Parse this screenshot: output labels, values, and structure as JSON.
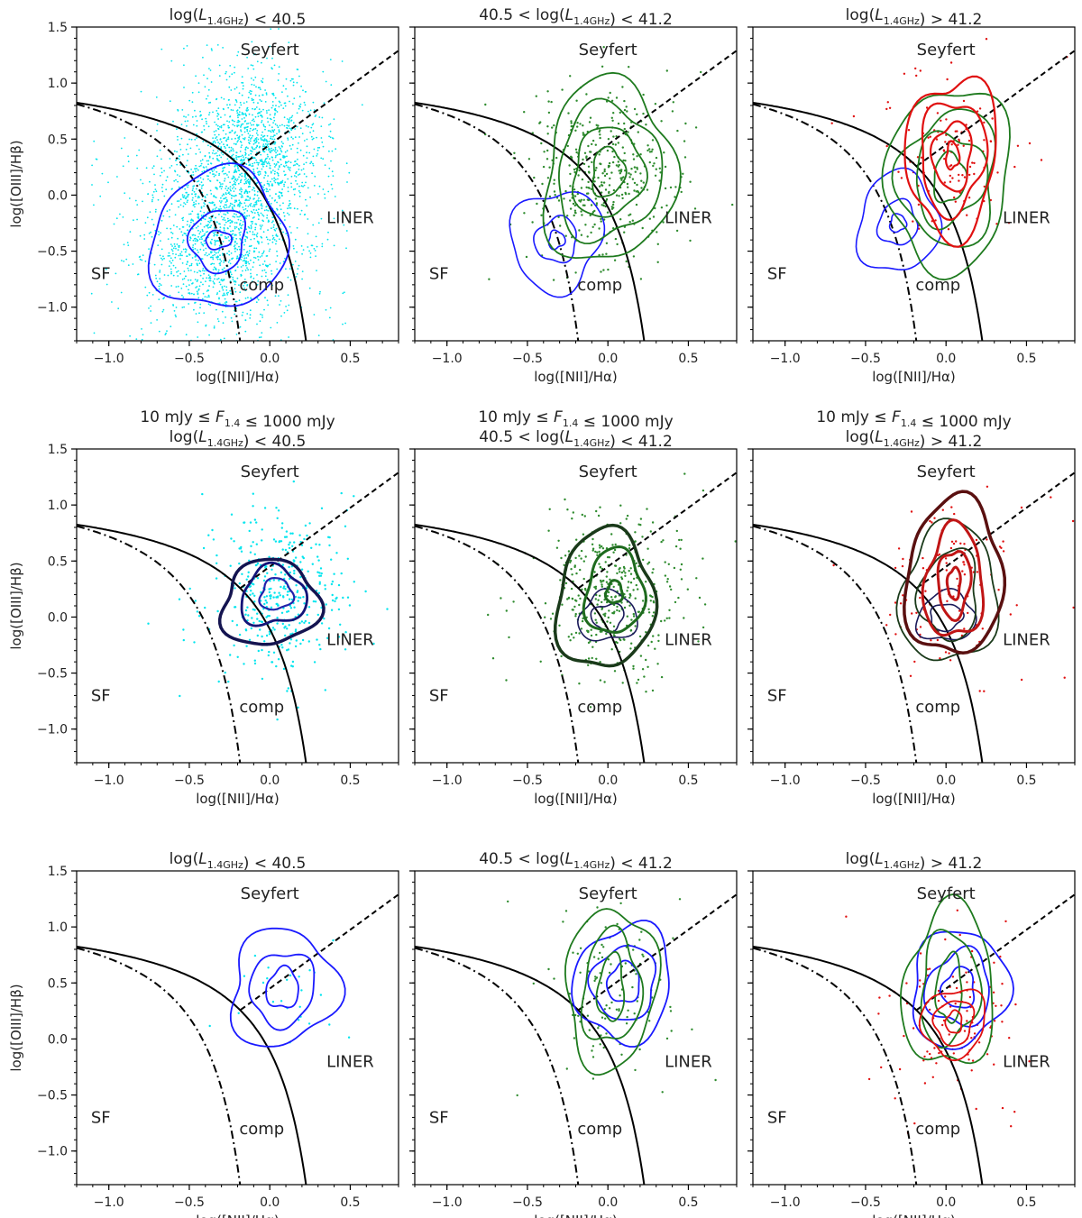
{
  "figure": {
    "columns": 3,
    "rows": 3
  },
  "chart_data": [
    {
      "type": "scatter",
      "row": 0,
      "col": 0,
      "title_lines": [
        "log(L_1.4GHz) < 40.5"
      ],
      "xlabel": "log([NII]/Hα)",
      "ylabel": "log([OIII]/Hβ)",
      "xlim": [
        -1.2,
        0.8
      ],
      "ylim": [
        -1.3,
        1.5
      ],
      "regions": [
        "Seyfert",
        "LINER",
        "SF",
        "comp"
      ],
      "points_color": "#00e5ee",
      "points_density": "high",
      "contour_groups": [
        {
          "color": "#1a1aff",
          "width": 1.8,
          "center": [
            -0.32,
            -0.4
          ],
          "rings": [
            [
              0.08,
              0.08
            ],
            [
              0.17,
              0.28
            ],
            [
              0.42,
              0.62
            ]
          ]
        }
      ]
    },
    {
      "type": "scatter",
      "row": 0,
      "col": 1,
      "title_lines": [
        "40.5 < log(L_1.4GHz) < 41.2"
      ],
      "xlabel": "log([NII]/Hα)",
      "ylabel": "",
      "xlim": [
        -1.2,
        0.8
      ],
      "ylim": [
        -1.3,
        1.5
      ],
      "regions": [
        "Seyfert",
        "LINER",
        "SF",
        "comp"
      ],
      "points_color": "#2e8b2e",
      "points_density": "medium",
      "contour_groups": [
        {
          "color": "#1a1aff",
          "width": 1.6,
          "center": [
            -0.32,
            -0.4
          ],
          "rings": [
            [
              0.05,
              0.08
            ],
            [
              0.13,
              0.2
            ],
            [
              0.28,
              0.45
            ]
          ]
        },
        {
          "color": "#1e7a1e",
          "width": 1.8,
          "center": [
            0.0,
            0.2
          ],
          "rings": [
            [
              0.1,
              0.22
            ],
            [
              0.22,
              0.4
            ],
            [
              0.32,
              0.6
            ],
            [
              0.4,
              0.82
            ]
          ]
        }
      ]
    },
    {
      "type": "scatter",
      "row": 0,
      "col": 2,
      "title_lines": [
        "log(L_1.4GHz) > 41.2"
      ],
      "xlabel": "log([NII]/Hα)",
      "ylabel": "",
      "xlim": [
        -1.2,
        0.8
      ],
      "ylim": [
        -1.3,
        1.5
      ],
      "regions": [
        "Seyfert",
        "LINER",
        "SF",
        "comp"
      ],
      "points_color": "#e01010",
      "points_density": "low",
      "contour_groups": [
        {
          "color": "#1a1aff",
          "width": 1.6,
          "center": [
            -0.3,
            -0.25
          ],
          "rings": [
            [
              0.05,
              0.08
            ],
            [
              0.12,
              0.2
            ],
            [
              0.25,
              0.45
            ]
          ]
        },
        {
          "color": "#1e7a1e",
          "width": 1.8,
          "center": [
            0.02,
            0.15
          ],
          "rings": [
            [
              0.1,
              0.22
            ],
            [
              0.22,
              0.4
            ],
            [
              0.3,
              0.6
            ],
            [
              0.38,
              0.82
            ]
          ]
        },
        {
          "color": "#e01010",
          "width": 2.2,
          "center": [
            0.04,
            0.35
          ],
          "rings": [
            [
              0.04,
              0.12
            ],
            [
              0.12,
              0.3
            ],
            [
              0.2,
              0.5
            ],
            [
              0.28,
              0.7
            ]
          ]
        }
      ]
    },
    {
      "type": "scatter",
      "row": 1,
      "col": 0,
      "title_lines": [
        "10 mJy ≤ F_1.4 ≤ 1000 mJy",
        "log(L_1.4GHz) < 40.5"
      ],
      "xlabel": "log([NII]/Hα)",
      "ylabel": "log([OIII]/Hβ)",
      "xlim": [
        -1.2,
        0.8
      ],
      "ylim": [
        -1.3,
        1.5
      ],
      "regions": [
        "Seyfert",
        "LINER",
        "SF",
        "comp"
      ],
      "points_color": "#00e5ee",
      "points_density": "medium",
      "contour_groups": [
        {
          "color": "#141450",
          "width": 3.5,
          "center": [
            0.0,
            0.12
          ],
          "rings": [
            [
              0.3,
              0.38
            ]
          ]
        },
        {
          "color": "#141478",
          "width": 2.8,
          "center": [
            0.02,
            0.18
          ],
          "rings": [
            [
              0.2,
              0.26
            ]
          ]
        },
        {
          "color": "#2222aa",
          "width": 2.2,
          "center": [
            0.04,
            0.2
          ],
          "rings": [
            [
              0.1,
              0.14
            ]
          ]
        }
      ]
    },
    {
      "type": "scatter",
      "row": 1,
      "col": 1,
      "title_lines": [
        "10 mJy ≤ F_1.4 ≤ 1000 mJy",
        "40.5 < log(L_1.4GHz) < 41.2"
      ],
      "xlabel": "log([NII]/Hα)",
      "ylabel": "",
      "xlim": [
        -1.2,
        0.8
      ],
      "ylim": [
        -1.3,
        1.5
      ],
      "regions": [
        "Seyfert",
        "LINER",
        "SF",
        "comp"
      ],
      "points_color": "#2e8b2e",
      "points_density": "medium",
      "contour_groups": [
        {
          "color": "#1a3a1a",
          "width": 3.5,
          "center": [
            -0.02,
            0.15
          ],
          "rings": [
            [
              0.3,
              0.62
            ]
          ]
        },
        {
          "color": "#1a1a5a",
          "width": 1.6,
          "center": [
            0.0,
            0.0
          ],
          "rings": [
            [
              0.18,
              0.22
            ],
            [
              0.1,
              0.12
            ]
          ]
        },
        {
          "color": "#1e6a1e",
          "width": 3.0,
          "center": [
            0.04,
            0.22
          ],
          "rings": [
            [
              0.18,
              0.38
            ],
            [
              0.05,
              0.1
            ]
          ]
        }
      ]
    },
    {
      "type": "scatter",
      "row": 1,
      "col": 2,
      "title_lines": [
        "10 mJy ≤ F_1.4 ≤ 1000 mJy",
        "log(L_1.4GHz) > 41.2"
      ],
      "xlabel": "log([NII]/Hα)",
      "ylabel": "",
      "xlim": [
        -1.2,
        0.8
      ],
      "ylim": [
        -1.3,
        1.5
      ],
      "regions": [
        "Seyfert",
        "LINER",
        "SF",
        "comp"
      ],
      "points_color": "#e01010",
      "points_density": "low",
      "contour_groups": [
        {
          "color": "#1a1a5a",
          "width": 1.6,
          "center": [
            0.0,
            0.0
          ],
          "rings": [
            [
              0.18,
              0.22
            ],
            [
              0.1,
              0.12
            ]
          ]
        },
        {
          "color": "#1a3a1a",
          "width": 1.8,
          "center": [
            0.02,
            0.2
          ],
          "rings": [
            [
              0.3,
              0.62
            ],
            [
              0.18,
              0.4
            ]
          ]
        },
        {
          "color": "#5a1010",
          "width": 3.5,
          "center": [
            0.05,
            0.35
          ],
          "rings": [
            [
              0.3,
              0.7
            ]
          ]
        },
        {
          "color": "#c01515",
          "width": 3.0,
          "center": [
            0.05,
            0.3
          ],
          "rings": [
            [
              0.18,
              0.5
            ],
            [
              0.1,
              0.3
            ],
            [
              0.04,
              0.14
            ]
          ]
        }
      ]
    },
    {
      "type": "scatter",
      "row": 2,
      "col": 0,
      "title_lines": [
        "log(L_1.4GHz) < 40.5"
      ],
      "xlabel": "log([NII]/Hα)",
      "ylabel": "log([OIII]/Hβ)",
      "xlim": [
        -1.2,
        0.8
      ],
      "ylim": [
        -1.3,
        1.5
      ],
      "regions": [
        "Seyfert",
        "LINER",
        "SF",
        "comp"
      ],
      "points_color": "#00e5ee",
      "points_density": "sparse",
      "contour_groups": [
        {
          "color": "#1a1aff",
          "width": 1.8,
          "center": [
            0.08,
            0.45
          ],
          "rings": [
            [
              0.1,
              0.18
            ],
            [
              0.2,
              0.33
            ],
            [
              0.33,
              0.52
            ]
          ]
        }
      ]
    },
    {
      "type": "scatter",
      "row": 2,
      "col": 1,
      "title_lines": [
        "40.5 < log(L_1.4GHz) < 41.2"
      ],
      "xlabel": "log([NII]/Hα)",
      "ylabel": "",
      "xlim": [
        -1.2,
        0.8
      ],
      "ylim": [
        -1.3,
        1.5
      ],
      "regions": [
        "Seyfert",
        "LINER",
        "SF",
        "comp"
      ],
      "points_color": "#2e8b2e",
      "points_density": "low",
      "contour_groups": [
        {
          "color": "#1a1aff",
          "width": 1.8,
          "center": [
            0.1,
            0.5
          ],
          "rings": [
            [
              0.1,
              0.18
            ],
            [
              0.2,
              0.33
            ],
            [
              0.3,
              0.52
            ]
          ]
        },
        {
          "color": "#1e7a1e",
          "width": 1.8,
          "center": [
            0.02,
            0.45
          ],
          "rings": [
            [
              0.08,
              0.3
            ],
            [
              0.18,
              0.5
            ],
            [
              0.28,
              0.72
            ]
          ]
        }
      ]
    },
    {
      "type": "scatter",
      "row": 2,
      "col": 2,
      "title_lines": [
        "log(L_1.4GHz) > 41.2"
      ],
      "xlabel": "log([NII]/Hα)",
      "ylabel": "",
      "xlim": [
        -1.2,
        0.8
      ],
      "ylim": [
        -1.3,
        1.5
      ],
      "regions": [
        "Seyfert",
        "LINER",
        "SF",
        "comp"
      ],
      "points_color": "#e01010",
      "points_density": "low",
      "contour_groups": [
        {
          "color": "#1a1aff",
          "width": 1.8,
          "center": [
            0.08,
            0.45
          ],
          "rings": [
            [
              0.1,
              0.18
            ],
            [
              0.2,
              0.33
            ],
            [
              0.3,
              0.52
            ]
          ]
        },
        {
          "color": "#1e7a1e",
          "width": 1.8,
          "center": [
            0.02,
            0.45
          ],
          "rings": [
            [
              0.08,
              0.3
            ],
            [
              0.18,
              0.5
            ],
            [
              0.28,
              0.72
            ]
          ]
        },
        {
          "color": "#e01010",
          "width": 1.8,
          "center": [
            0.05,
            0.15
          ],
          "rings": [
            [
              0.05,
              0.1
            ],
            [
              0.12,
              0.2
            ],
            [
              0.2,
              0.3
            ]
          ]
        }
      ]
    }
  ]
}
